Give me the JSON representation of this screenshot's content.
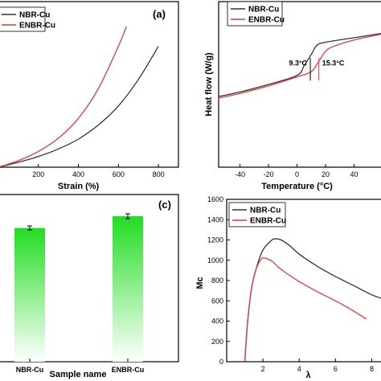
{
  "chart_data": [
    {
      "panel": "a",
      "type": "line",
      "xlabel": "Strain (%)",
      "ylabel": "",
      "xlim": [
        0,
        900
      ],
      "ylim": [
        0,
        10
      ],
      "x_ticks": [
        200,
        400,
        600,
        800
      ],
      "legend": "top-left",
      "panel_label": "(a)",
      "series": [
        {
          "name": "NBR-Cu",
          "color": "#333333",
          "x": [
            0,
            100,
            200,
            300,
            400,
            500,
            600,
            700,
            800
          ],
          "y": [
            0.0,
            0.3,
            0.65,
            1.1,
            1.7,
            2.55,
            3.7,
            5.3,
            7.3
          ]
        },
        {
          "name": "ENBR-Cu",
          "color": "#e03a3a",
          "x": [
            0,
            100,
            200,
            300,
            400,
            500,
            600,
            640
          ],
          "y": [
            0.0,
            0.4,
            0.95,
            1.75,
            2.95,
            4.75,
            7.3,
            8.5
          ]
        }
      ]
    },
    {
      "panel": "b",
      "type": "line",
      "xlabel": "Temperature (°C)",
      "ylabel": "Heat flow (W/g)",
      "xlim": [
        -55,
        60
      ],
      "x_ticks": [
        -40,
        -20,
        0,
        20,
        40
      ],
      "legend": "top-left",
      "series": [
        {
          "name": "NBR-Cu",
          "color": "#333333",
          "x": [
            -60,
            -40,
            -20,
            0,
            5,
            10,
            14,
            20,
            40,
            60
          ],
          "y": [
            0.02,
            0.1,
            0.2,
            0.32,
            0.45,
            0.6,
            0.72,
            0.76,
            0.82,
            0.88
          ]
        },
        {
          "name": "ENBR-Cu",
          "color": "#e03a3a",
          "x": [
            -60,
            -40,
            -20,
            0,
            10,
            15,
            20,
            25,
            40,
            60
          ],
          "y": [
            0.0,
            0.08,
            0.18,
            0.3,
            0.37,
            0.5,
            0.64,
            0.7,
            0.79,
            0.87
          ]
        }
      ],
      "annotations": [
        {
          "text": "9.3°C",
          "x": 9.3,
          "color": "#000000"
        },
        {
          "text": "15.3°C",
          "x": 15.3,
          "color": "#e03a3a"
        }
      ]
    },
    {
      "panel": "c",
      "type": "bar",
      "xlabel": "Sample name",
      "ylabel": "",
      "categories": [
        "NBR-Cu",
        "ENBR-Cu"
      ],
      "values": [
        0.8,
        0.87
      ],
      "errors": [
        0.012,
        0.015
      ],
      "ylim": [
        0,
        1
      ],
      "bar_color": "#22dd22",
      "panel_label": "(c)"
    },
    {
      "panel": "d",
      "type": "line",
      "xlabel": "λ",
      "ylabel": "Mc",
      "xlim": [
        0,
        8.6
      ],
      "ylim": [
        0,
        1600
      ],
      "x_ticks": [
        2,
        4,
        6,
        8
      ],
      "y_ticks": [
        0,
        200,
        400,
        600,
        800,
        1000,
        1200,
        1400,
        1600
      ],
      "legend": "top-left",
      "series": [
        {
          "name": "NBR-Cu",
          "color": "#333333",
          "x": [
            1.0,
            1.15,
            1.35,
            1.6,
            2.0,
            2.5,
            2.7,
            3.0,
            3.5,
            4.0,
            5.0,
            6.0,
            7.0,
            8.0,
            8.6
          ],
          "y": [
            0,
            380,
            700,
            900,
            1100,
            1200,
            1210,
            1200,
            1140,
            1060,
            940,
            840,
            750,
            660,
            620
          ]
        },
        {
          "name": "ENBR-Cu",
          "color": "#e03a3a",
          "x": [
            1.0,
            1.15,
            1.35,
            1.6,
            1.9,
            2.1,
            2.5,
            3.0,
            4.0,
            5.0,
            6.0,
            7.0,
            7.7
          ],
          "y": [
            0,
            380,
            700,
            900,
            1010,
            1020,
            990,
            910,
            790,
            690,
            600,
            500,
            420
          ]
        }
      ]
    }
  ]
}
